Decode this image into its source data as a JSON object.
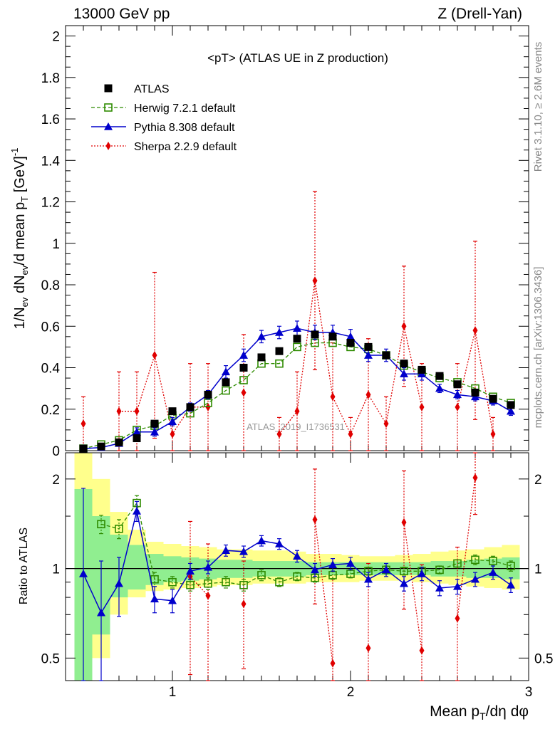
{
  "header": {
    "left": "13000 GeV pp",
    "right": "Z (Drell-Yan)"
  },
  "side_labels": {
    "rivet": "Rivet 3.1.10, ≥ 2.6M events",
    "mcplots": "mcplots.cern.ch [arXiv:1306.3436]"
  },
  "watermark": "ATLAS_2019_I1736531",
  "colors": {
    "atlas": "#000000",
    "herwig": "#2e8b00",
    "pythia": "#0000cc",
    "sherpa": "#e00000",
    "band_inner": "#90ee90",
    "band_outer": "#ffff8c"
  },
  "chart_data": [
    {
      "type": "scatter",
      "title": "<pT> (ATLAS UE in Z production)",
      "ylabel": "1/N_ev dN_ev/d mean p_T [GeV]^-1",
      "xlim": [
        0.4,
        3.0
      ],
      "ylim": [
        0,
        2.05
      ],
      "xticks": [
        1,
        2,
        3
      ],
      "yticks": [
        0,
        0.2,
        0.4,
        0.6,
        0.8,
        1,
        1.2,
        1.4,
        1.6,
        1.8,
        2
      ],
      "ytick_labels": [
        "0",
        "0.2",
        "0.4",
        "0.6",
        "0.8",
        "1",
        "1.2",
        "1.4",
        "1.6",
        "1.8",
        "2"
      ],
      "legend_placement": "top-left",
      "legend": [
        {
          "key": "atlas",
          "label": "ATLAS"
        },
        {
          "key": "herwig",
          "label": "Herwig 7.2.1 default"
        },
        {
          "key": "pythia",
          "label": "Pythia 8.308 default"
        },
        {
          "key": "sherpa",
          "label": "Sherpa 2.2.9 default"
        }
      ],
      "x": [
        0.5,
        0.6,
        0.7,
        0.8,
        0.9,
        1.0,
        1.1,
        1.2,
        1.3,
        1.4,
        1.5,
        1.6,
        1.7,
        1.8,
        1.9,
        2.0,
        2.1,
        2.2,
        2.3,
        2.4,
        2.5,
        2.6,
        2.7,
        2.8,
        2.9
      ],
      "series": [
        {
          "name": "ATLAS",
          "key": "atlas",
          "values": [
            0.01,
            0.02,
            0.04,
            0.06,
            0.13,
            0.19,
            0.21,
            0.27,
            0.33,
            0.4,
            0.45,
            0.48,
            0.54,
            0.56,
            0.55,
            0.52,
            0.5,
            0.46,
            0.42,
            0.39,
            0.36,
            0.32,
            0.28,
            0.25,
            0.22
          ]
        },
        {
          "name": "Herwig 7.2.1 default",
          "key": "herwig",
          "values": [
            0.01,
            0.03,
            0.05,
            0.1,
            0.12,
            0.17,
            0.18,
            0.23,
            0.29,
            0.34,
            0.42,
            0.42,
            0.5,
            0.52,
            0.52,
            0.5,
            0.49,
            0.46,
            0.41,
            0.38,
            0.35,
            0.33,
            0.3,
            0.26,
            0.23
          ]
        },
        {
          "name": "Pythia 8.308 default",
          "key": "pythia",
          "values": [
            0.01,
            0.015,
            0.035,
            0.09,
            0.09,
            0.14,
            0.21,
            0.27,
            0.38,
            0.46,
            0.55,
            0.57,
            0.59,
            0.57,
            0.57,
            0.55,
            0.46,
            0.46,
            0.37,
            0.37,
            0.3,
            0.27,
            0.26,
            0.24,
            0.19
          ],
          "errors": [
            0.01,
            0.01,
            0.01,
            0.02,
            0.02,
            0.02,
            0.02,
            0.02,
            0.03,
            0.03,
            0.03,
            0.03,
            0.035,
            0.035,
            0.035,
            0.035,
            0.03,
            0.03,
            0.03,
            0.03,
            0.02,
            0.02,
            0.02,
            0.02,
            0.02
          ]
        },
        {
          "name": "Sherpa 2.2.9 default",
          "key": "sherpa",
          "values": [
            0.13,
            null,
            0.19,
            0.19,
            0.46,
            0.08,
            0.21,
            0.21,
            null,
            0.28,
            null,
            0.08,
            0.19,
            0.82,
            0.26,
            0.08,
            0.27,
            0.13,
            0.6,
            0.21,
            null,
            0.21,
            0.58,
            0.08,
            null
          ],
          "errors": [
            0.13,
            null,
            0.19,
            0.19,
            0.4,
            0.08,
            0.21,
            0.21,
            null,
            0.28,
            null,
            0.08,
            0.19,
            0.43,
            0.26,
            0.08,
            0.27,
            0.13,
            0.29,
            0.21,
            null,
            0.21,
            0.43,
            0.08,
            null
          ]
        }
      ]
    },
    {
      "type": "scatter",
      "ylabel": "Ratio to ATLAS",
      "xlabel": "Mean p_T/dη dφ",
      "xlim": [
        0.4,
        3.0
      ],
      "ylim": [
        0.42,
        2.45
      ],
      "log_y": true,
      "reference_line": 1,
      "xticks": [
        1,
        2,
        3
      ],
      "xtick_labels": [
        "1",
        "2",
        "3"
      ],
      "yticks": [
        0.5,
        1,
        2
      ],
      "ytick_labels": [
        "0.5",
        "1",
        "2"
      ],
      "x": [
        0.5,
        0.6,
        0.7,
        0.8,
        0.9,
        1.0,
        1.1,
        1.2,
        1.3,
        1.4,
        1.5,
        1.6,
        1.7,
        1.8,
        1.9,
        2.0,
        2.1,
        2.2,
        2.3,
        2.4,
        2.5,
        2.6,
        2.7,
        2.8,
        2.9
      ],
      "band_inner": [
        [
          0.3,
          1.85
        ],
        [
          0.6,
          1.5
        ],
        [
          0.8,
          1.3
        ],
        [
          0.85,
          1.2
        ],
        [
          0.88,
          1.12
        ],
        [
          0.9,
          1.1
        ],
        [
          0.91,
          1.09
        ],
        [
          0.92,
          1.08
        ],
        [
          0.93,
          1.07
        ],
        [
          0.93,
          1.07
        ],
        [
          0.94,
          1.06
        ],
        [
          0.94,
          1.06
        ],
        [
          0.94,
          1.06
        ],
        [
          0.95,
          1.05
        ],
        [
          0.95,
          1.05
        ],
        [
          0.95,
          1.05
        ],
        [
          0.95,
          1.05
        ],
        [
          0.95,
          1.05
        ],
        [
          0.95,
          1.05
        ],
        [
          0.95,
          1.05
        ],
        [
          0.94,
          1.06
        ],
        [
          0.94,
          1.06
        ],
        [
          0.93,
          1.07
        ],
        [
          0.93,
          1.08
        ],
        [
          0.92,
          1.09
        ]
      ],
      "band_outer": [
        [
          0.3,
          2.45
        ],
        [
          0.5,
          2.0
        ],
        [
          0.7,
          1.55
        ],
        [
          0.8,
          1.35
        ],
        [
          0.84,
          1.23
        ],
        [
          0.85,
          1.21
        ],
        [
          0.86,
          1.19
        ],
        [
          0.87,
          1.18
        ],
        [
          0.88,
          1.16
        ],
        [
          0.88,
          1.16
        ],
        [
          0.89,
          1.15
        ],
        [
          0.89,
          1.15
        ],
        [
          0.89,
          1.14
        ],
        [
          0.9,
          1.12
        ],
        [
          0.9,
          1.12
        ],
        [
          0.9,
          1.11
        ],
        [
          0.91,
          1.1
        ],
        [
          0.91,
          1.1
        ],
        [
          0.91,
          1.11
        ],
        [
          0.9,
          1.12
        ],
        [
          0.89,
          1.14
        ],
        [
          0.88,
          1.15
        ],
        [
          0.87,
          1.16
        ],
        [
          0.86,
          1.18
        ],
        [
          0.85,
          1.2
        ]
      ],
      "series": [
        {
          "name": "Herwig 7.2.1 default",
          "key": "herwig",
          "values": [
            null,
            1.41,
            1.36,
            1.66,
            0.92,
            0.9,
            0.88,
            0.89,
            0.9,
            0.88,
            0.95,
            0.9,
            0.94,
            0.93,
            0.95,
            0.96,
            0.98,
            0.99,
            0.98,
            0.98,
            0.99,
            1.04,
            1.07,
            1.06,
            1.02
          ],
          "errors": [
            null,
            0.1,
            0.1,
            0.1,
            0.05,
            0.04,
            0.04,
            0.04,
            0.04,
            0.04,
            0.04,
            0.03,
            0.03,
            0.03,
            0.03,
            0.03,
            0.03,
            0.03,
            0.03,
            0.03,
            0.03,
            0.03,
            0.04,
            0.04,
            0.04
          ]
        },
        {
          "name": "Pythia 8.308 default",
          "key": "pythia",
          "values": [
            0.96,
            0.71,
            0.89,
            1.56,
            0.79,
            0.78,
            0.98,
            1.01,
            1.15,
            1.14,
            1.24,
            1.21,
            1.1,
            0.99,
            1.03,
            1.04,
            0.92,
            0.99,
            0.89,
            0.96,
            0.86,
            0.87,
            0.92,
            0.97,
            0.88
          ],
          "errors": [
            0.9,
            0.35,
            0.2,
            0.12,
            0.08,
            0.07,
            0.06,
            0.05,
            0.05,
            0.05,
            0.05,
            0.05,
            0.05,
            0.05,
            0.05,
            0.05,
            0.05,
            0.05,
            0.05,
            0.05,
            0.05,
            0.05,
            0.05,
            0.05,
            0.05
          ]
        },
        {
          "name": "Sherpa 2.2.9 default",
          "key": "sherpa",
          "values": [
            null,
            null,
            null,
            null,
            null,
            null,
            0.94,
            0.81,
            null,
            0.76,
            null,
            null,
            null,
            1.46,
            0.48,
            null,
            0.54,
            null,
            1.43,
            0.53,
            null,
            0.68,
            2.02,
            null,
            null
          ],
          "errors": [
            null,
            null,
            null,
            null,
            null,
            null,
            0.5,
            0.4,
            null,
            0.3,
            null,
            null,
            null,
            0.7,
            0.5,
            null,
            0.5,
            null,
            0.7,
            0.5,
            null,
            0.5,
            0.5,
            null,
            null
          ]
        }
      ]
    }
  ]
}
